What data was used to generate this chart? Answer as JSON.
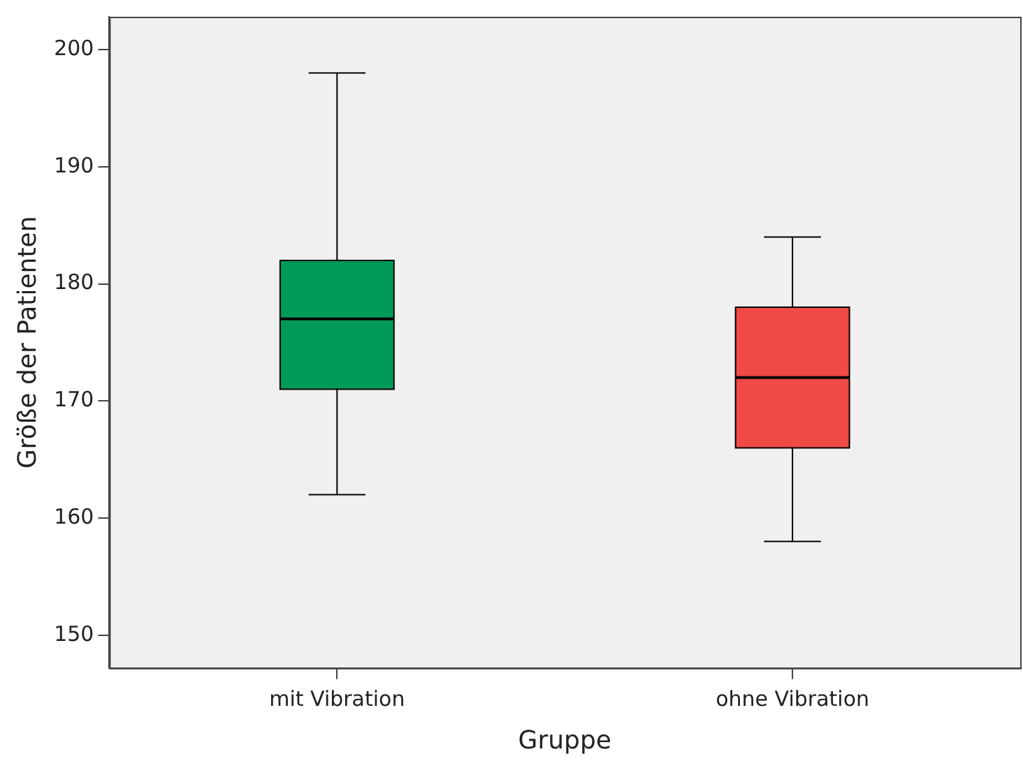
{
  "chart_data": {
    "type": "box",
    "categories": [
      "mit Vibration",
      "ohne Vibration"
    ],
    "xlabel": "Gruppe",
    "ylabel": "Größe der Patienten",
    "boxes": [
      {
        "low": 162,
        "q1": 171,
        "median": 177,
        "q3": 182,
        "high": 198
      },
      {
        "low": 158,
        "q1": 166,
        "median": 172,
        "q3": 178,
        "high": 184
      }
    ],
    "colors": [
      "#009a58",
      "#ef4a46"
    ],
    "ylim": [
      147.2,
      202.8
    ],
    "yticks": [
      150,
      160,
      170,
      180,
      190,
      200
    ],
    "grid": false,
    "legend": false
  }
}
